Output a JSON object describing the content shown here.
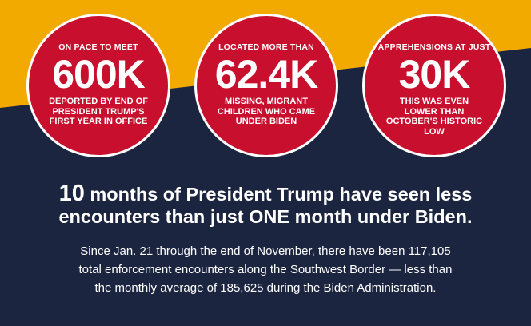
{
  "colors": {
    "navy": "#1c2540",
    "gold": "#f2a900",
    "red": "#c8102e",
    "white": "#ffffff"
  },
  "stats": [
    {
      "label": "ON PACE TO MEET",
      "value": "600K",
      "description": "DEPORTED BY END OF PRESIDENT TRUMP'S FIRST YEAR IN OFFICE"
    },
    {
      "label": "LOCATED MORE THAN",
      "value": "62.4K",
      "description": "MISSING, MIGRANT CHILDREN WHO CAME UNDER BIDEN"
    },
    {
      "label": "APPREHENSIONS AT JUST",
      "value": "30K",
      "description": "THIS WAS EVEN LOWER THAN OCTOBER'S HISTORIC LOW"
    }
  ],
  "headline": {
    "number": "10",
    "rest": " months of President Trump have seen less encounters than just ONE month under Biden."
  },
  "body": "Since Jan. 21 through the end of November, there have been 117,105 total enforcement encounters along the Southwest Border — less than the monthly average of 185,625 during the Biden Administration."
}
